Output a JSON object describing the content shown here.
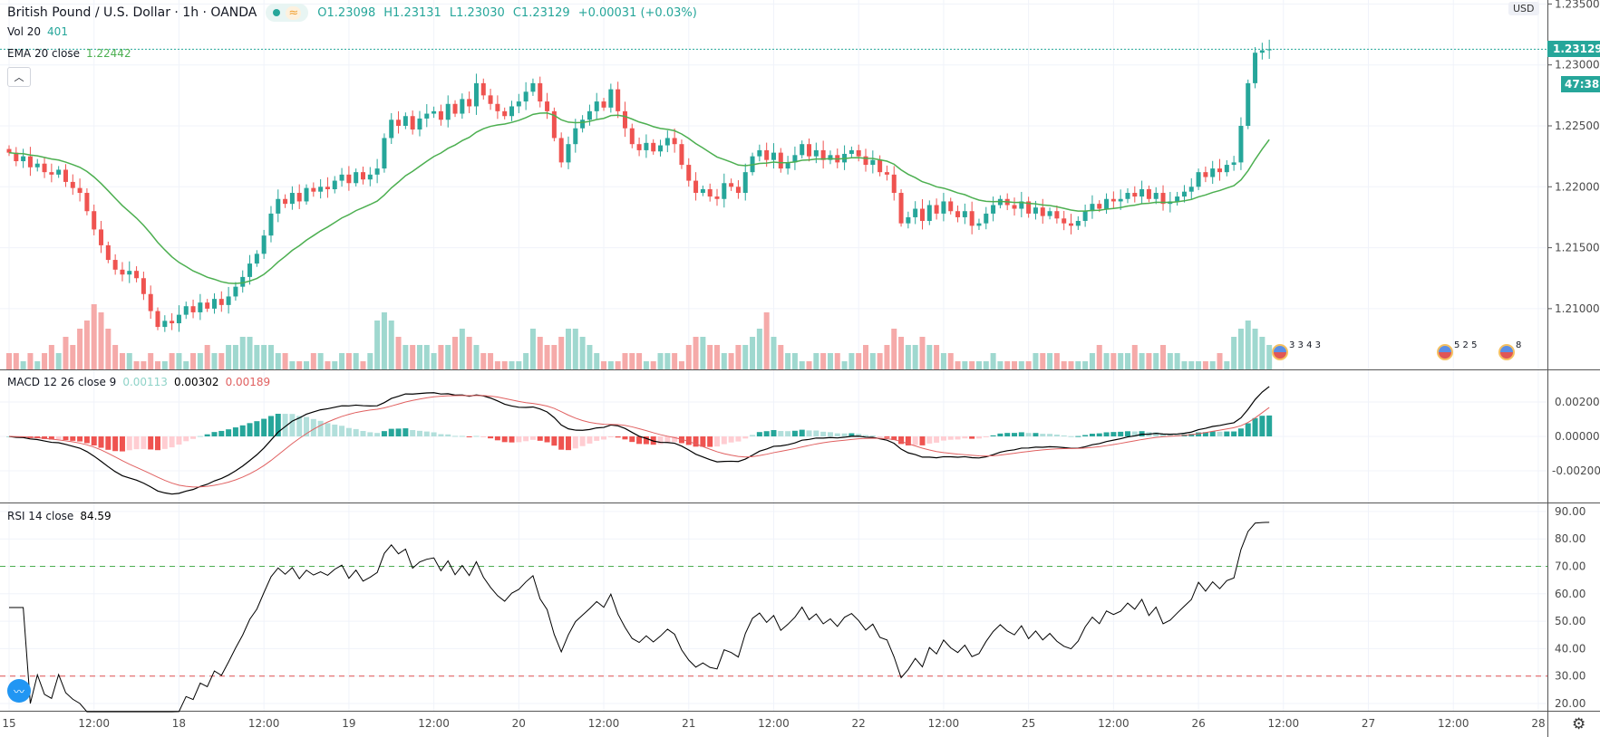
{
  "header": {
    "symbol": "British Pound / U.S. Dollar · 1h · OANDA",
    "open": "O1.23098",
    "high": "H1.23131",
    "low": "L1.23030",
    "close": "C1.23129",
    "change": "+0.00031 (+0.03%)"
  },
  "volume_legend": {
    "label": "Vol 20",
    "value": "401"
  },
  "ema_legend": {
    "label": "EMA 20 close",
    "value": "1.22442"
  },
  "macd_legend": {
    "label": "MACD 12 26 close 9",
    "hist": "0.00113",
    "macd": "0.00302",
    "signal": "0.00189"
  },
  "rsi_legend": {
    "label": "RSI 14 close",
    "value": "84.59"
  },
  "price_axis": {
    "currency": "USD",
    "ticks": [
      "1.23500",
      "1.23000",
      "1.22500",
      "1.22000",
      "1.21500",
      "1.21000"
    ],
    "last_price": "1.23129",
    "countdown": "47:38"
  },
  "macd_axis": {
    "ticks": [
      "0.00200",
      "0.00000",
      "-0.00200"
    ]
  },
  "rsi_axis": {
    "ticks": [
      "90.00",
      "80.00",
      "70.00",
      "60.00",
      "50.00",
      "40.00",
      "30.00",
      "20.00"
    ]
  },
  "time_axis": [
    {
      "label": "15",
      "bar": 0
    },
    {
      "label": "12:00",
      "bar": 12
    },
    {
      "label": "18",
      "bar": 24
    },
    {
      "label": "12:00",
      "bar": 36
    },
    {
      "label": "19",
      "bar": 48
    },
    {
      "label": "12:00",
      "bar": 60
    },
    {
      "label": "20",
      "bar": 72
    },
    {
      "label": "12:00",
      "bar": 84
    },
    {
      "label": "21",
      "bar": 96
    },
    {
      "label": "12:00",
      "bar": 108
    },
    {
      "label": "22",
      "bar": 120
    },
    {
      "label": "12:00",
      "bar": 132
    },
    {
      "label": "25",
      "bar": 144
    },
    {
      "label": "12:00",
      "bar": 156
    },
    {
      "label": "26",
      "bar": 168
    },
    {
      "label": "12:00",
      "bar": 180
    },
    {
      "label": "27",
      "bar": 192
    },
    {
      "label": "12:00",
      "bar": 204
    },
    {
      "label": "28",
      "bar": 216
    }
  ],
  "events": [
    {
      "counts": "3 3 4 3"
    },
    {
      "counts": "5 2 5"
    },
    {
      "counts": "8"
    }
  ],
  "colors": {
    "up": "#26a69a",
    "down": "#ef5350",
    "ema": "#4caf50",
    "macd": "#000000",
    "signal": "#e06060"
  },
  "chart_data": {
    "type": "candlestick",
    "ylim": [
      1.2065,
      1.2355
    ],
    "close": [
      1.2228,
      1.2221,
      1.2225,
      1.2216,
      1.2219,
      1.2212,
      1.221,
      1.2214,
      1.2204,
      1.2199,
      1.2195,
      1.218,
      1.2165,
      1.2152,
      1.214,
      1.2132,
      1.2128,
      1.2131,
      1.2125,
      1.2112,
      1.2098,
      1.2085,
      1.209,
      1.2088,
      1.2095,
      1.2102,
      1.2097,
      1.2105,
      1.21,
      1.2108,
      1.2103,
      1.211,
      1.2118,
      1.2126,
      1.2137,
      1.2145,
      1.216,
      1.2178,
      1.219,
      1.2186,
      1.2195,
      1.2188,
      1.2199,
      1.2196,
      1.22,
      1.2198,
      1.2205,
      1.221,
      1.2203,
      1.2212,
      1.2206,
      1.221,
      1.2215,
      1.224,
      1.2255,
      1.225,
      1.2258,
      1.2247,
      1.2256,
      1.226,
      1.2262,
      1.2255,
      1.2268,
      1.226,
      1.2272,
      1.2266,
      1.2285,
      1.2275,
      1.2268,
      1.2262,
      1.2258,
      1.2266,
      1.227,
      1.2278,
      1.2285,
      1.227,
      1.2262,
      1.224,
      1.222,
      1.2235,
      1.2248,
      1.2255,
      1.2262,
      1.227,
      1.2265,
      1.228,
      1.2262,
      1.2248,
      1.2235,
      1.223,
      1.2236,
      1.2229,
      1.2234,
      1.224,
      1.2235,
      1.2218,
      1.2205,
      1.2195,
      1.2198,
      1.2192,
      1.219,
      1.2203,
      1.22,
      1.2195,
      1.2212,
      1.2225,
      1.223,
      1.2222,
      1.2228,
      1.2215,
      1.222,
      1.2226,
      1.2235,
      1.2225,
      1.223,
      1.2222,
      1.2226,
      1.222,
      1.2227,
      1.223,
      1.2225,
      1.2218,
      1.2222,
      1.2212,
      1.221,
      1.2195,
      1.217,
      1.2175,
      1.2182,
      1.2172,
      1.2185,
      1.2178,
      1.2188,
      1.218,
      1.2175,
      1.218,
      1.2168,
      1.217,
      1.2178,
      1.2185,
      1.219,
      1.2185,
      1.2182,
      1.2188,
      1.2178,
      1.2183,
      1.2176,
      1.218,
      1.2174,
      1.217,
      1.2168,
      1.2172,
      1.218,
      1.2186,
      1.2182,
      1.219,
      1.2188,
      1.219,
      1.2195,
      1.2192,
      1.2198,
      1.219,
      1.2195,
      1.2186,
      1.2188,
      1.2192,
      1.2196,
      1.22,
      1.2212,
      1.2208,
      1.2215,
      1.2212,
      1.2218,
      1.222,
      1.225,
      1.2285,
      1.231,
      1.2312,
      1.23129
    ],
    "volume": [
      2,
      2,
      1,
      2,
      1,
      2,
      3,
      2,
      4,
      3,
      5,
      6,
      8,
      7,
      5,
      3,
      2,
      2,
      1,
      1,
      2,
      1,
      1,
      2,
      2,
      1,
      2,
      2,
      3,
      2,
      2,
      3,
      3,
      4,
      4,
      3,
      3,
      3,
      2,
      2,
      1,
      1,
      1,
      2,
      2,
      1,
      1,
      2,
      2,
      2,
      1,
      2,
      6,
      7,
      6,
      4,
      3,
      3,
      3,
      3,
      2,
      3,
      3,
      4,
      5,
      4,
      3,
      2,
      2,
      1,
      1,
      1,
      1,
      2,
      5,
      4,
      3,
      3,
      4,
      5,
      5,
      4,
      3,
      2,
      1,
      1,
      1,
      2,
      2,
      2,
      1,
      1,
      2,
      2,
      2,
      1,
      3,
      4,
      4,
      3,
      3,
      2,
      2,
      3,
      3,
      4,
      5,
      7,
      4,
      3,
      2,
      2,
      1,
      1,
      2,
      2,
      2,
      2,
      1,
      2,
      2,
      3,
      2,
      2,
      3,
      5,
      4,
      3,
      3,
      4,
      3,
      3,
      2,
      2,
      1,
      1,
      1,
      1,
      1,
      2,
      1,
      1,
      1,
      1,
      1,
      2,
      2,
      2,
      2,
      1,
      1,
      1,
      1,
      2,
      3,
      2,
      2,
      2,
      2,
      3,
      2,
      2,
      2,
      3,
      2,
      2,
      1,
      1,
      1,
      1,
      1,
      2,
      1,
      4,
      5,
      6,
      5,
      4,
      3
    ],
    "macd_ylim": [
      -0.0033,
      0.0043
    ],
    "rsi_ylim": [
      17,
      92
    ],
    "rsi_levels": [
      70,
      30
    ]
  }
}
